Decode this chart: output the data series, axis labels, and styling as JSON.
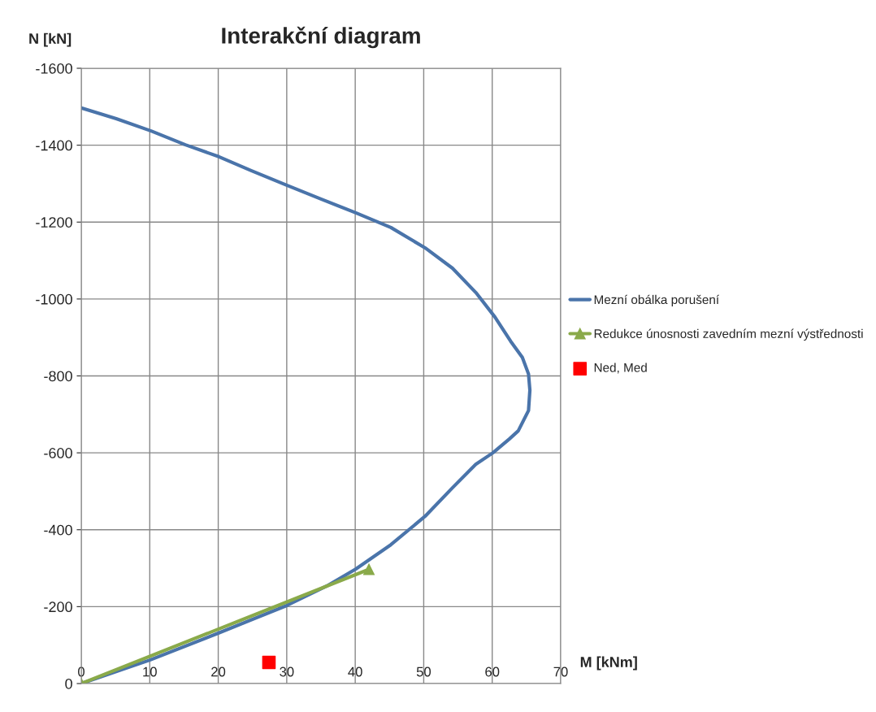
{
  "chart_data": {
    "type": "line",
    "title": "Interakční diagram",
    "xlabel": "M [kNm]",
    "ylabel": "N [kN]",
    "xlim": [
      0,
      70
    ],
    "xticks": [
      0,
      10,
      20,
      30,
      40,
      50,
      60,
      70
    ],
    "ylim": [
      0,
      -1600
    ],
    "yticks": [
      0,
      -200,
      -400,
      -600,
      -800,
      -1000,
      -1200,
      -1400,
      -1600
    ],
    "grid": true,
    "legend": "right",
    "series": [
      {
        "name": "Mezní obálka porušení",
        "color": "#4a74aa",
        "marker": "none",
        "x": [
          0,
          10,
          20,
          30,
          36.1,
          40.1,
          45.2,
          50.2,
          54.2,
          57.6,
          60.1,
          62.5,
          63.8,
          65.3,
          65.5,
          65.3,
          64.4,
          62.7,
          60.4,
          57.6,
          54.2,
          50.2,
          45.2,
          40.1,
          35,
          30,
          24.8,
          20.1,
          15.2,
          10.2,
          5.1,
          0
        ],
        "values": [
          0,
          -61,
          -131,
          -203,
          -256,
          -298,
          -361,
          -435,
          -509,
          -570,
          -600,
          -636,
          -657,
          -710,
          -763,
          -805,
          -848,
          -890,
          -953,
          -1017,
          -1080,
          -1133,
          -1186,
          -1224,
          -1260,
          -1296,
          -1334,
          -1370,
          -1401,
          -1437,
          -1469,
          -1497
        ]
      },
      {
        "name": "Redukce únosnosti zavedním mezní výstřednosti",
        "color": "#8aaa4a",
        "marker": "triangle",
        "x": [
          0,
          42
        ],
        "values": [
          0,
          -297
        ]
      },
      {
        "name": "Ned, Med",
        "color": "#ff0000",
        "type": "scatter",
        "marker": "square",
        "x": [
          27.4
        ],
        "values": [
          -55
        ]
      }
    ]
  }
}
